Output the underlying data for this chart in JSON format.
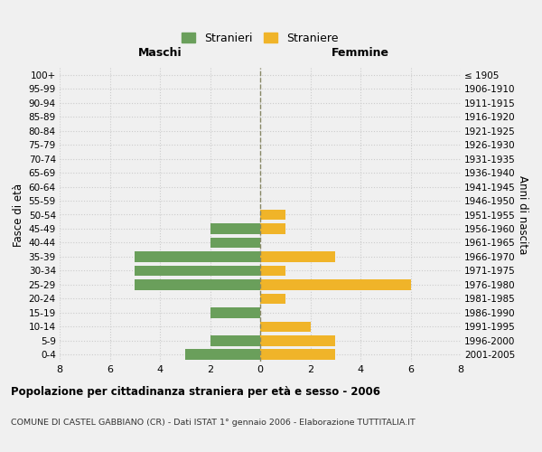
{
  "age_groups": [
    "0-4",
    "5-9",
    "10-14",
    "15-19",
    "20-24",
    "25-29",
    "30-34",
    "35-39",
    "40-44",
    "45-49",
    "50-54",
    "55-59",
    "60-64",
    "65-69",
    "70-74",
    "75-79",
    "80-84",
    "85-89",
    "90-94",
    "95-99",
    "100+"
  ],
  "birth_years": [
    "2001-2005",
    "1996-2000",
    "1991-1995",
    "1986-1990",
    "1981-1985",
    "1976-1980",
    "1971-1975",
    "1966-1970",
    "1961-1965",
    "1956-1960",
    "1951-1955",
    "1946-1950",
    "1941-1945",
    "1936-1940",
    "1931-1935",
    "1926-1930",
    "1921-1925",
    "1916-1920",
    "1911-1915",
    "1906-1910",
    "≤ 1905"
  ],
  "maschi": [
    3,
    2,
    0,
    2,
    0,
    5,
    5,
    5,
    2,
    2,
    0,
    0,
    0,
    0,
    0,
    0,
    0,
    0,
    0,
    0,
    0
  ],
  "femmine": [
    3,
    3,
    2,
    0,
    1,
    6,
    1,
    3,
    0,
    1,
    1,
    0,
    0,
    0,
    0,
    0,
    0,
    0,
    0,
    0,
    0
  ],
  "color_maschi": "#6a9f5b",
  "color_femmine": "#f0b429",
  "xlim": 8,
  "title": "Popolazione per cittadinanza straniera per età e sesso - 2006",
  "subtitle": "COMUNE DI CASTEL GABBIANO (CR) - Dati ISTAT 1° gennaio 2006 - Elaborazione TUTTITALIA.IT",
  "ylabel_left": "Fasce di età",
  "ylabel_right": "Anni di nascita",
  "legend_maschi": "Stranieri",
  "legend_femmine": "Straniere",
  "header_maschi": "Maschi",
  "header_femmine": "Femmine",
  "bg_color": "#f0f0f0",
  "grid_color": "#cccccc",
  "bar_height": 0.75
}
